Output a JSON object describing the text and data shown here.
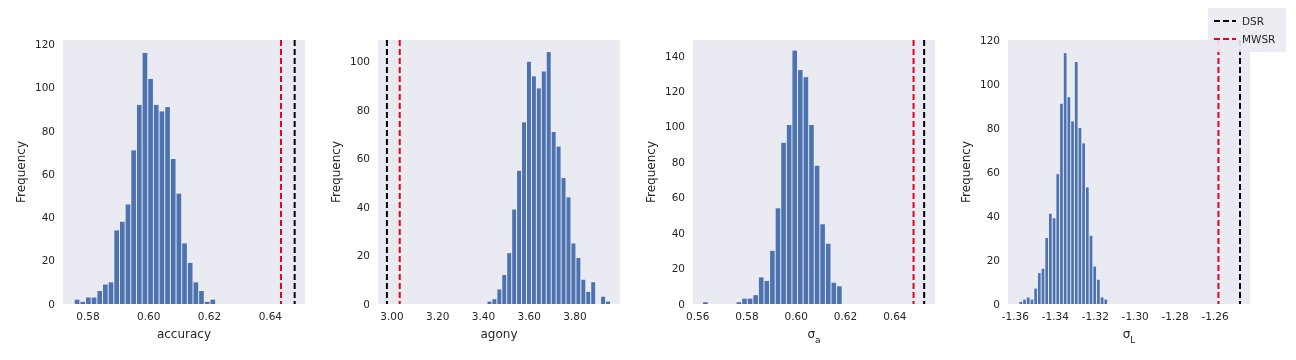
{
  "chart_data": [
    {
      "type": "histogram",
      "xlabel": "accuracy",
      "ylabel": "Frequency",
      "color": "#4c72b0",
      "bins": [
        0.5755,
        0.57736,
        0.57922,
        0.58108,
        0.58294,
        0.5848,
        0.58666,
        0.58852,
        0.59038,
        0.59224,
        0.5941,
        0.59596,
        0.59782,
        0.59968,
        0.60154,
        0.6034,
        0.60526,
        0.60712,
        0.60898,
        0.61084,
        0.6127,
        0.61456,
        0.61642,
        0.61828,
        0.62014,
        0.622
      ],
      "values": [
        2,
        1,
        3,
        3,
        6,
        9,
        10,
        34,
        38,
        46,
        71,
        92,
        116,
        104,
        92,
        89,
        91,
        67,
        51,
        28,
        19,
        10,
        6,
        1,
        2
      ],
      "xlim": [
        0.5718,
        0.6514
      ],
      "xticks": [
        0.58,
        {
          "value": 0.6,
          "label": "0.60"
        },
        0.62,
        0.64
      ],
      "ylim": [
        0,
        122
      ],
      "yticks": [
        0,
        20,
        40,
        60,
        80,
        100,
        120
      ],
      "ref_lines": [
        {
          "axis": "x",
          "value": 0.648,
          "color": "#000000",
          "line_style": "dashed"
        },
        {
          "axis": "x",
          "value": 0.6435,
          "color": "#e8001c",
          "line_style": "dashed"
        }
      ]
    },
    {
      "type": "histogram",
      "xlabel": "agony",
      "ylabel": "Frequency",
      "color": "#4c72b0",
      "bins": [
        3.4154,
        3.437,
        3.4586,
        3.4802,
        3.5018,
        3.5234,
        3.545,
        3.5666,
        3.5882,
        3.6098,
        3.6314,
        3.653,
        3.6746,
        3.6962,
        3.7178,
        3.7394,
        3.761,
        3.7826,
        3.8042,
        3.8258,
        3.8474,
        3.869,
        3.8906,
        3.9122,
        3.9338,
        3.9554
      ],
      "values": [
        1,
        2,
        6,
        12,
        21,
        39,
        55,
        75,
        100,
        94,
        89,
        96,
        104,
        71,
        65,
        52,
        44,
        25,
        19,
        10,
        5,
        9,
        0,
        3,
        1
      ],
      "xlim": [
        2.939,
        3.997
      ],
      "xticks": [
        {
          "value": 3,
          "label": "3.00"
        },
        {
          "value": 3.2,
          "label": "3.20"
        },
        {
          "value": 3.4,
          "label": "3.40"
        },
        {
          "value": 3.6,
          "label": "3.60"
        },
        {
          "value": 3.8,
          "label": "3.80"
        }
      ],
      "ylim": [
        0,
        109
      ],
      "yticks": [
        0,
        20,
        40,
        60,
        80,
        100
      ],
      "ref_lines": [
        {
          "axis": "x",
          "value": 2.978,
          "color": "#000000",
          "line_style": "dashed"
        },
        {
          "axis": "x",
          "value": 3.034,
          "color": "#e8001c",
          "line_style": "dashed"
        }
      ]
    },
    {
      "type": "histogram",
      "xlabel": "σ$_{a}$",
      "ylabel": "Frequency",
      "color": "#4c72b0",
      "bins": [
        0.562,
        0.56427,
        0.56653,
        0.5688,
        0.57106,
        0.57333,
        0.57559,
        0.57786,
        0.58012,
        0.58239,
        0.58465,
        0.58692,
        0.58918,
        0.59145,
        0.59371,
        0.59598,
        0.59824,
        0.60051,
        0.60277,
        0.60504,
        0.6073,
        0.60957,
        0.61183,
        0.6141,
        0.61636,
        0.61863
      ],
      "values": [
        1,
        0,
        0,
        0,
        0,
        0,
        1,
        3,
        3,
        5,
        15,
        13,
        30,
        54,
        91,
        101,
        143,
        132,
        128,
        101,
        78,
        45,
        34,
        12,
        10
      ],
      "xlim": [
        0.5581,
        0.6563
      ],
      "xticks": [
        0.56,
        0.58,
        {
          "value": 0.6,
          "label": "0.60"
        },
        0.62,
        0.64
      ],
      "ylim": [
        0,
        149
      ],
      "yticks": [
        0,
        20,
        40,
        60,
        80,
        100,
        120,
        140
      ],
      "ref_lines": [
        {
          "axis": "x",
          "value": 0.6519,
          "color": "#000000",
          "line_style": "dashed"
        },
        {
          "axis": "x",
          "value": 0.6476,
          "color": "#e8001c",
          "line_style": "dashed"
        }
      ]
    },
    {
      "type": "histogram",
      "xlabel": "σ$_{L}$",
      "ylabel": "Frequency",
      "color": "#4c72b0",
      "legend": "top right",
      "bins": [
        -1.3582,
        -1.35635,
        -1.3545,
        -1.35265,
        -1.3508,
        -1.34895,
        -1.3471,
        -1.34525,
        -1.3434,
        -1.34155,
        -1.3397,
        -1.33785,
        -1.336,
        -1.33415,
        -1.3323,
        -1.33045,
        -1.3286,
        -1.32675,
        -1.3249,
        -1.32305,
        -1.3212,
        -1.31935,
        -1.3175,
        -1.31565,
        -1.3138
      ],
      "values": [
        1,
        2,
        3,
        2,
        7,
        14,
        16,
        30,
        41,
        39,
        59,
        91,
        114,
        94,
        83,
        110,
        80,
        73,
        53,
        31,
        17,
        11,
        3,
        2
      ],
      "xlim": [
        -1.3637,
        -1.2425
      ],
      "xticks": [
        -1.36,
        -1.34,
        -1.32,
        {
          "value": -1.3,
          "label": "-1.30"
        },
        -1.28,
        -1.26
      ],
      "ylim": [
        0,
        120
      ],
      "yticks": [
        0,
        20,
        40,
        60,
        80,
        100,
        120
      ],
      "ref_lines": [
        {
          "axis": "x",
          "value": -1.2475,
          "label": "DSR",
          "color": "#000000",
          "line_style": "dashed"
        },
        {
          "axis": "x",
          "value": -1.2583,
          "label": "MWSR",
          "color": "#e8001c",
          "line_style": "dashed"
        }
      ]
    }
  ]
}
